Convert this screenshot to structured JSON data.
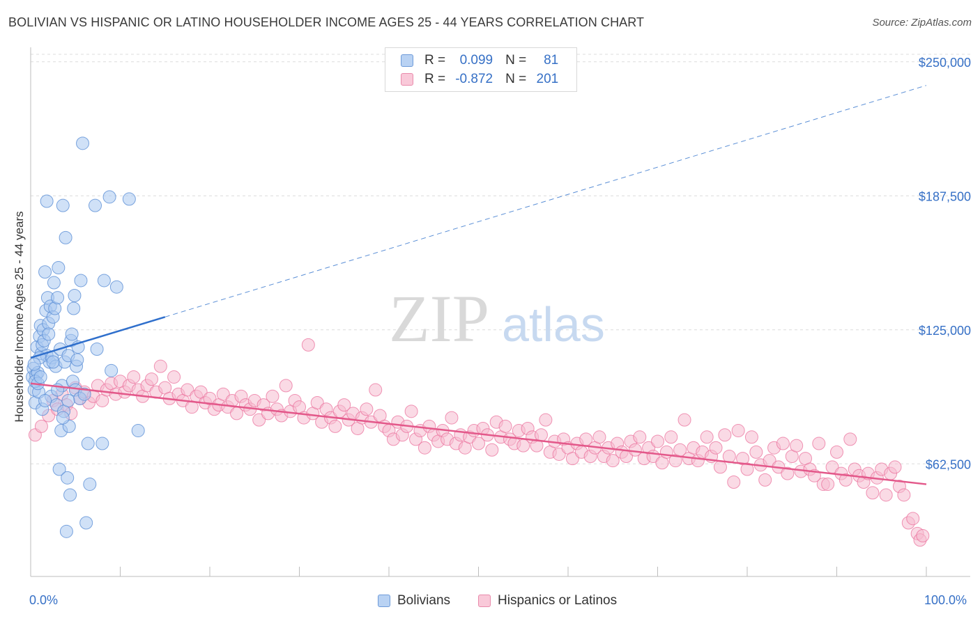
{
  "title": "BOLIVIAN VS HISPANIC OR LATINO HOUSEHOLDER INCOME AGES 25 - 44 YEARS CORRELATION CHART",
  "source": "Source: ZipAtlas.com",
  "watermark": {
    "zip": "ZIP",
    "atlas": "atlas"
  },
  "legend": {
    "r_label": "R =",
    "n_label": "N =",
    "rows": [
      {
        "r": "0.099",
        "n": "81",
        "color": "#8ab4ee"
      },
      {
        "r": "-0.872",
        "n": "201",
        "color": "#f4a7c1"
      }
    ]
  },
  "colors": {
    "blue": "#5b8fd6",
    "blue_fill": "#a9c8f0",
    "pink": "#e96a97",
    "pink_fill": "#f6bcd0",
    "accent": "#3670c6"
  },
  "chart_data": {
    "type": "scatter",
    "xlabel": "",
    "ylabel": "Householder Income Ages 25 - 44 years",
    "xlim": [
      0,
      100
    ],
    "ylim": [
      10000,
      260000
    ],
    "x_tick_labels": [
      "0.0%",
      "100.0%"
    ],
    "y_ticks": [
      62500,
      125000,
      187500,
      250000
    ],
    "y_tick_labels": [
      "$62,500",
      "$125,000",
      "$187,500",
      "$250,000"
    ],
    "grid": true,
    "series": [
      {
        "name": "Bolivians",
        "color": "#5b8fd6",
        "trend": {
          "x": [
            0,
            15
          ],
          "y": [
            112000,
            131000
          ],
          "dashed_to": [
            100,
            239000
          ]
        },
        "points": [
          [
            0.2,
            103
          ],
          [
            0.3,
            107
          ],
          [
            0.4,
            97
          ],
          [
            0.5,
            91
          ],
          [
            0.6,
            104
          ],
          [
            0.7,
            117
          ],
          [
            0.8,
            105
          ],
          [
            0.9,
            96
          ],
          [
            1.0,
            122
          ],
          [
            1.1,
            127
          ],
          [
            1.2,
            114
          ],
          [
            1.3,
            118
          ],
          [
            1.4,
            125
          ],
          [
            1.5,
            120
          ],
          [
            1.6,
            152
          ],
          [
            1.7,
            134
          ],
          [
            1.8,
            113
          ],
          [
            1.9,
            140
          ],
          [
            2.0,
            128
          ],
          [
            2.1,
            110
          ],
          [
            2.2,
            136
          ],
          [
            2.3,
            94
          ],
          [
            2.4,
            112
          ],
          [
            2.5,
            131
          ],
          [
            2.6,
            147
          ],
          [
            2.7,
            135
          ],
          [
            2.8,
            108
          ],
          [
            2.9,
            90
          ],
          [
            3.0,
            140
          ],
          [
            3.1,
            154
          ],
          [
            3.2,
            60
          ],
          [
            3.3,
            116
          ],
          [
            3.4,
            78
          ],
          [
            3.5,
            99
          ],
          [
            3.6,
            183
          ],
          [
            3.7,
            87
          ],
          [
            3.8,
            110
          ],
          [
            3.9,
            168
          ],
          [
            4.0,
            31
          ],
          [
            4.1,
            56
          ],
          [
            4.2,
            113
          ],
          [
            4.3,
            80
          ],
          [
            4.4,
            48
          ],
          [
            4.5,
            120
          ],
          [
            4.6,
            123
          ],
          [
            4.7,
            101
          ],
          [
            4.8,
            135
          ],
          [
            4.9,
            141
          ],
          [
            5.0,
            97
          ],
          [
            5.1,
            108
          ],
          [
            5.3,
            117
          ],
          [
            5.5,
            93
          ],
          [
            5.6,
            148
          ],
          [
            5.8,
            212
          ],
          [
            6.2,
            35
          ],
          [
            6.4,
            72
          ],
          [
            6.6,
            53
          ],
          [
            7.2,
            183
          ],
          [
            7.4,
            116
          ],
          [
            8.0,
            72
          ],
          [
            8.2,
            148
          ],
          [
            8.8,
            187
          ],
          [
            9.0,
            106
          ],
          [
            9.6,
            145
          ],
          [
            11.0,
            186
          ],
          [
            12.0,
            78
          ],
          [
            1.8,
            185
          ],
          [
            0.5,
            101
          ],
          [
            0.8,
            100
          ],
          [
            1.0,
            112
          ],
          [
            1.3,
            88
          ],
          [
            1.6,
            92
          ],
          [
            2.0,
            123
          ],
          [
            2.5,
            110
          ],
          [
            3.0,
            97
          ],
          [
            3.6,
            84
          ],
          [
            4.2,
            92
          ],
          [
            5.2,
            111
          ],
          [
            6.0,
            95
          ],
          [
            0.4,
            109
          ],
          [
            1.1,
            103
          ]
        ]
      },
      {
        "name": "Hispanics or Latinos",
        "color": "#e96a97",
        "trend": {
          "x": [
            0,
            100
          ],
          "y": [
            100000,
            53000
          ]
        },
        "points": [
          [
            0.5,
            76
          ],
          [
            1.2,
            80
          ],
          [
            2.0,
            85
          ],
          [
            2.5,
            92
          ],
          [
            3.0,
            88
          ],
          [
            3.5,
            95
          ],
          [
            4.0,
            90
          ],
          [
            4.5,
            86
          ],
          [
            5.0,
            98
          ],
          [
            5.5,
            93
          ],
          [
            6.0,
            96
          ],
          [
            6.5,
            91
          ],
          [
            7.0,
            94
          ],
          [
            7.5,
            99
          ],
          [
            8.0,
            92
          ],
          [
            8.5,
            97
          ],
          [
            9.0,
            100
          ],
          [
            9.5,
            95
          ],
          [
            10.0,
            101
          ],
          [
            10.5,
            96
          ],
          [
            11.0,
            99
          ],
          [
            11.5,
            103
          ],
          [
            12.0,
            97
          ],
          [
            12.5,
            94
          ],
          [
            13.0,
            99
          ],
          [
            13.5,
            102
          ],
          [
            14.0,
            96
          ],
          [
            14.5,
            108
          ],
          [
            15.0,
            98
          ],
          [
            15.5,
            93
          ],
          [
            16.0,
            103
          ],
          [
            16.5,
            95
          ],
          [
            17.0,
            92
          ],
          [
            17.5,
            97
          ],
          [
            18.0,
            89
          ],
          [
            18.5,
            94
          ],
          [
            19.0,
            96
          ],
          [
            19.5,
            91
          ],
          [
            20.0,
            93
          ],
          [
            20.5,
            88
          ],
          [
            21.0,
            90
          ],
          [
            21.5,
            95
          ],
          [
            22.0,
            89
          ],
          [
            22.5,
            92
          ],
          [
            23.0,
            86
          ],
          [
            23.5,
            94
          ],
          [
            24.0,
            90
          ],
          [
            24.5,
            88
          ],
          [
            25.0,
            92
          ],
          [
            25.5,
            83
          ],
          [
            26.0,
            90
          ],
          [
            26.5,
            86
          ],
          [
            27.0,
            94
          ],
          [
            27.5,
            88
          ],
          [
            28.0,
            85
          ],
          [
            28.5,
            99
          ],
          [
            29.0,
            87
          ],
          [
            29.5,
            92
          ],
          [
            30.0,
            89
          ],
          [
            30.5,
            84
          ],
          [
            31.0,
            118
          ],
          [
            31.5,
            86
          ],
          [
            32.0,
            91
          ],
          [
            32.5,
            82
          ],
          [
            33.0,
            88
          ],
          [
            33.5,
            84
          ],
          [
            34.0,
            80
          ],
          [
            34.5,
            87
          ],
          [
            35.0,
            90
          ],
          [
            35.5,
            83
          ],
          [
            36.0,
            86
          ],
          [
            36.5,
            79
          ],
          [
            37.0,
            84
          ],
          [
            37.5,
            88
          ],
          [
            38.0,
            82
          ],
          [
            38.5,
            97
          ],
          [
            39.0,
            85
          ],
          [
            39.5,
            80
          ],
          [
            40.0,
            78
          ],
          [
            40.5,
            74
          ],
          [
            41.0,
            82
          ],
          [
            41.5,
            76
          ],
          [
            42.0,
            80
          ],
          [
            42.5,
            87
          ],
          [
            43.0,
            74
          ],
          [
            43.5,
            78
          ],
          [
            44.0,
            70
          ],
          [
            44.5,
            80
          ],
          [
            45.0,
            76
          ],
          [
            45.5,
            73
          ],
          [
            46.0,
            78
          ],
          [
            46.5,
            74
          ],
          [
            47.0,
            84
          ],
          [
            47.5,
            72
          ],
          [
            48.0,
            76
          ],
          [
            48.5,
            70
          ],
          [
            49.0,
            75
          ],
          [
            49.5,
            78
          ],
          [
            50.0,
            72
          ],
          [
            50.5,
            79
          ],
          [
            51.0,
            76
          ],
          [
            51.5,
            69
          ],
          [
            52.0,
            82
          ],
          [
            52.5,
            75
          ],
          [
            53.0,
            80
          ],
          [
            53.5,
            74
          ],
          [
            54.0,
            72
          ],
          [
            54.5,
            78
          ],
          [
            55.0,
            71
          ],
          [
            55.5,
            79
          ],
          [
            56.0,
            75
          ],
          [
            56.5,
            71
          ],
          [
            57.0,
            76
          ],
          [
            57.5,
            83
          ],
          [
            58.0,
            68
          ],
          [
            58.5,
            73
          ],
          [
            59.0,
            67
          ],
          [
            59.5,
            74
          ],
          [
            60.0,
            70
          ],
          [
            60.5,
            65
          ],
          [
            61.0,
            72
          ],
          [
            61.5,
            68
          ],
          [
            62.0,
            74
          ],
          [
            62.5,
            66
          ],
          [
            63.0,
            70
          ],
          [
            63.5,
            75
          ],
          [
            64.0,
            66
          ],
          [
            64.5,
            70
          ],
          [
            65.0,
            64
          ],
          [
            65.5,
            72
          ],
          [
            66.0,
            68
          ],
          [
            66.5,
            66
          ],
          [
            67.0,
            73
          ],
          [
            67.5,
            69
          ],
          [
            68.0,
            75
          ],
          [
            68.5,
            65
          ],
          [
            69.0,
            70
          ],
          [
            69.5,
            66
          ],
          [
            70.0,
            73
          ],
          [
            70.5,
            63
          ],
          [
            71.0,
            68
          ],
          [
            71.5,
            75
          ],
          [
            72.0,
            64
          ],
          [
            72.5,
            69
          ],
          [
            73.0,
            83
          ],
          [
            73.5,
            65
          ],
          [
            74.0,
            70
          ],
          [
            74.5,
            64
          ],
          [
            75.0,
            68
          ],
          [
            75.5,
            75
          ],
          [
            76.0,
            66
          ],
          [
            76.5,
            70
          ],
          [
            77.0,
            61
          ],
          [
            77.5,
            76
          ],
          [
            78.0,
            66
          ],
          [
            78.5,
            54
          ],
          [
            79.0,
            78
          ],
          [
            79.5,
            65
          ],
          [
            80.0,
            60
          ],
          [
            80.5,
            75
          ],
          [
            81.0,
            68
          ],
          [
            81.5,
            62
          ],
          [
            82.0,
            55
          ],
          [
            82.5,
            64
          ],
          [
            83.0,
            70
          ],
          [
            83.5,
            61
          ],
          [
            84.0,
            72
          ],
          [
            84.5,
            58
          ],
          [
            85.0,
            66
          ],
          [
            85.5,
            71
          ],
          [
            86.0,
            59
          ],
          [
            86.5,
            65
          ],
          [
            87.0,
            60
          ],
          [
            87.5,
            57
          ],
          [
            88.0,
            72
          ],
          [
            88.5,
            53
          ],
          [
            89.0,
            53
          ],
          [
            89.5,
            61
          ],
          [
            90.0,
            68
          ],
          [
            90.5,
            58
          ],
          [
            91.0,
            55
          ],
          [
            91.5,
            74
          ],
          [
            92.0,
            60
          ],
          [
            92.5,
            57
          ],
          [
            93.0,
            54
          ],
          [
            93.5,
            58
          ],
          [
            94.0,
            49
          ],
          [
            94.5,
            56
          ],
          [
            95.0,
            60
          ],
          [
            95.5,
            48
          ],
          [
            96.0,
            58
          ],
          [
            96.5,
            61
          ],
          [
            97.0,
            52
          ],
          [
            97.5,
            48
          ],
          [
            98.0,
            35
          ],
          [
            98.5,
            37
          ],
          [
            99.0,
            30
          ],
          [
            99.3,
            27
          ],
          [
            99.6,
            29
          ]
        ]
      }
    ]
  },
  "bottom_legend": [
    "Bolivians",
    "Hispanics or Latinos"
  ]
}
